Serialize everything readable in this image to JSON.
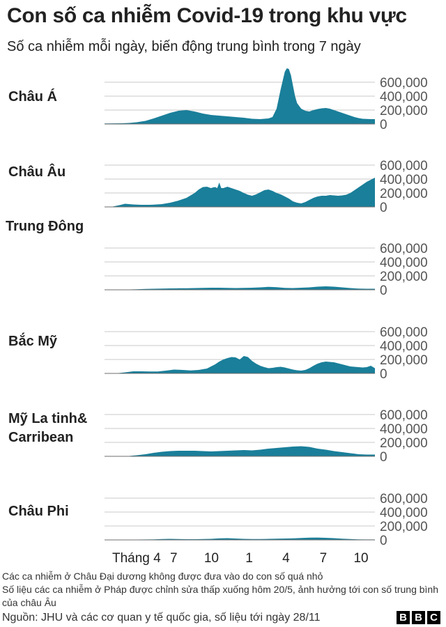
{
  "title": "Con số ca nhiễm Covid-19 trong khu vực",
  "subtitle": "Số ca nhiễm mỗi ngày, biến động trung bình trong 7 ngày",
  "colors": {
    "area": "#1a7f9a",
    "grid": "#c9c9c9",
    "text": "#222222"
  },
  "chart_data": {
    "type": "area",
    "x_ticks": [
      "Tháng 4",
      "7",
      "10",
      "1",
      "4",
      "7",
      "10"
    ],
    "y_ticks": [
      "600,000",
      "400,000",
      "200,000",
      "0"
    ],
    "ylim": [
      0,
      800000
    ],
    "x_range_days": [
      0,
      660
    ],
    "x_tick_days": [
      78,
      169,
      261,
      353,
      443,
      534,
      626
    ],
    "series": [
      {
        "name": "Châu Á",
        "x": [
          0,
          40,
          60,
          78,
          100,
          120,
          140,
          160,
          180,
          200,
          220,
          240,
          260,
          280,
          300,
          320,
          340,
          360,
          380,
          400,
          410,
          420,
          430,
          440,
          445,
          450,
          455,
          460,
          465,
          470,
          480,
          490,
          500,
          510,
          520,
          530,
          540,
          550,
          560,
          570,
          580,
          590,
          600,
          610,
          620,
          630,
          640,
          650,
          660
        ],
        "values": [
          8000,
          10000,
          15000,
          25000,
          45000,
          80000,
          120000,
          160000,
          190000,
          200000,
          180000,
          150000,
          130000,
          120000,
          110000,
          100000,
          90000,
          75000,
          70000,
          80000,
          100000,
          220000,
          500000,
          750000,
          800000,
          790000,
          700000,
          550000,
          400000,
          300000,
          220000,
          190000,
          180000,
          200000,
          215000,
          225000,
          230000,
          220000,
          200000,
          180000,
          160000,
          140000,
          120000,
          100000,
          85000,
          75000,
          72000,
          70000,
          70000
        ]
      },
      {
        "name": "Châu Âu",
        "x": [
          0,
          20,
          40,
          50,
          60,
          70,
          80,
          90,
          100,
          110,
          120,
          140,
          160,
          180,
          200,
          220,
          230,
          240,
          250,
          260,
          265,
          270,
          275,
          280,
          285,
          290,
          295,
          300,
          310,
          320,
          330,
          340,
          350,
          360,
          370,
          380,
          390,
          400,
          410,
          420,
          430,
          440,
          450,
          460,
          470,
          480,
          490,
          500,
          510,
          520,
          530,
          540,
          550,
          560,
          570,
          580,
          590,
          600,
          610,
          620,
          630,
          640,
          650,
          660
        ],
        "values": [
          0,
          5000,
          30000,
          45000,
          40000,
          35000,
          32000,
          30000,
          30000,
          30000,
          32000,
          40000,
          60000,
          90000,
          130000,
          200000,
          250000,
          285000,
          290000,
          270000,
          280000,
          285000,
          270000,
          350000,
          270000,
          270000,
          280000,
          290000,
          270000,
          250000,
          230000,
          200000,
          175000,
          160000,
          180000,
          210000,
          240000,
          250000,
          230000,
          200000,
          180000,
          150000,
          120000,
          80000,
          60000,
          50000,
          70000,
          100000,
          130000,
          150000,
          160000,
          160000,
          170000,
          165000,
          160000,
          165000,
          175000,
          200000,
          240000,
          280000,
          320000,
          360000,
          390000,
          420000
        ]
      },
      {
        "name": "Trung Đông",
        "x": [
          0,
          40,
          60,
          78,
          100,
          120,
          140,
          160,
          180,
          200,
          220,
          240,
          260,
          280,
          300,
          320,
          340,
          360,
          380,
          400,
          420,
          440,
          460,
          480,
          500,
          520,
          540,
          560,
          580,
          600,
          620,
          640,
          660
        ],
        "values": [
          0,
          1000,
          5000,
          8000,
          12000,
          15000,
          18000,
          20000,
          22000,
          23000,
          25000,
          28000,
          30000,
          30000,
          28000,
          25000,
          28000,
          30000,
          35000,
          42000,
          38000,
          28000,
          25000,
          30000,
          35000,
          45000,
          50000,
          45000,
          35000,
          25000,
          18000,
          15000,
          15000
        ]
      },
      {
        "name": "Bắc Mỹ",
        "x": [
          0,
          30,
          50,
          70,
          90,
          110,
          130,
          150,
          170,
          190,
          210,
          230,
          250,
          260,
          270,
          280,
          290,
          300,
          310,
          320,
          330,
          340,
          350,
          360,
          370,
          380,
          390,
          400,
          410,
          420,
          430,
          440,
          450,
          460,
          470,
          480,
          490,
          500,
          510,
          520,
          530,
          540,
          550,
          560,
          570,
          580,
          590,
          600,
          610,
          620,
          630,
          640,
          650,
          660
        ],
        "values": [
          0,
          2000,
          15000,
          30000,
          30000,
          28000,
          28000,
          40000,
          55000,
          50000,
          42000,
          50000,
          70000,
          100000,
          130000,
          170000,
          200000,
          220000,
          235000,
          230000,
          200000,
          250000,
          235000,
          180000,
          140000,
          110000,
          90000,
          75000,
          80000,
          90000,
          95000,
          85000,
          70000,
          55000,
          45000,
          40000,
          50000,
          75000,
          110000,
          140000,
          160000,
          170000,
          165000,
          160000,
          145000,
          130000,
          115000,
          100000,
          95000,
          90000,
          85000,
          90000,
          110000,
          75000
        ]
      },
      {
        "name": "Mỹ La tinh& Carribean",
        "x": [
          0,
          40,
          60,
          78,
          100,
          120,
          140,
          160,
          180,
          200,
          220,
          240,
          260,
          280,
          300,
          320,
          340,
          360,
          380,
          400,
          420,
          440,
          460,
          480,
          500,
          520,
          540,
          560,
          580,
          600,
          620,
          640,
          660
        ],
        "values": [
          0,
          1000,
          5000,
          15000,
          30000,
          50000,
          65000,
          75000,
          80000,
          80000,
          80000,
          75000,
          70000,
          75000,
          80000,
          85000,
          90000,
          85000,
          95000,
          110000,
          120000,
          130000,
          140000,
          145000,
          135000,
          110000,
          95000,
          75000,
          60000,
          45000,
          30000,
          25000,
          25000
        ]
      },
      {
        "name": "Châu Phi",
        "x": [
          0,
          40,
          60,
          78,
          100,
          120,
          140,
          160,
          180,
          200,
          220,
          240,
          260,
          280,
          300,
          320,
          340,
          360,
          380,
          400,
          420,
          440,
          460,
          480,
          500,
          520,
          540,
          560,
          580,
          600,
          620,
          640,
          660
        ],
        "values": [
          0,
          2000,
          3000,
          5000,
          6000,
          8000,
          12000,
          15000,
          12000,
          10000,
          10000,
          12000,
          15000,
          22000,
          25000,
          20000,
          15000,
          12000,
          12000,
          15000,
          18000,
          20000,
          22000,
          28000,
          32000,
          34000,
          30000,
          25000,
          18000,
          12000,
          8000,
          6000,
          6000
        ]
      }
    ]
  },
  "notes": [
    "Các ca nhiễm ở Châu Đại dương không được đưa vào do con số quá nhỏ",
    "Số liệu các ca nhiễm ở Pháp được chỉnh sửa thấp xuống hôm 20/5, ảnh hưởng tới con số trung bình của châu Âu"
  ],
  "source": "Nguồn:  JHU và các cơ quan y tế quốc gia, số liệu tới ngày 28/11",
  "logo_letters": [
    "B",
    "B",
    "C"
  ]
}
